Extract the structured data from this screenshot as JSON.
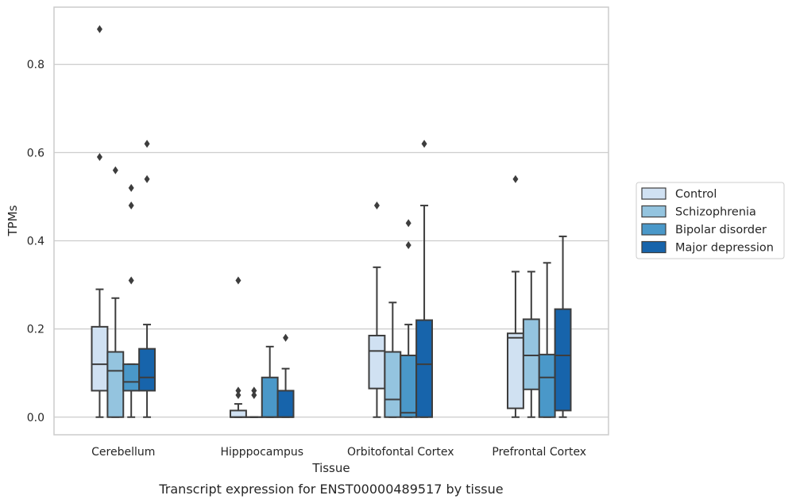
{
  "caption": "Transcript expression for ENST00000489517 by tissue",
  "chart_data": {
    "type": "box",
    "xlabel": "Tissue",
    "ylabel": "TPMs",
    "ylim": [
      -0.04,
      0.93
    ],
    "yticks": [
      0.0,
      0.2,
      0.4,
      0.6,
      0.8
    ],
    "ytick_labels": [
      "0.0",
      "0.2",
      "0.4",
      "0.6",
      "0.8"
    ],
    "grid": "horizontal",
    "legend_position": "right",
    "categories": [
      "Cerebellum",
      "Hipppocampus",
      "Orbitofontal Cortex",
      "Prefrontal Cortex"
    ],
    "series": [
      {
        "name": "Control",
        "color": "#d0e1f2",
        "boxes": [
          {
            "low": 0.0,
            "q1": 0.06,
            "median": 0.12,
            "q3": 0.205,
            "high": 0.29,
            "outliers": [
              0.88,
              0.59
            ]
          },
          {
            "low": 0.0,
            "q1": 0.0,
            "median": 0.0,
            "q3": 0.015,
            "high": 0.03,
            "outliers": [
              0.31,
              0.06,
              0.05
            ]
          },
          {
            "low": 0.0,
            "q1": 0.065,
            "median": 0.15,
            "q3": 0.185,
            "high": 0.34,
            "outliers": [
              0.48
            ]
          },
          {
            "low": 0.0,
            "q1": 0.02,
            "median": 0.18,
            "q3": 0.19,
            "high": 0.33,
            "outliers": [
              0.54
            ]
          }
        ]
      },
      {
        "name": "Schizophrenia",
        "color": "#94c4df",
        "boxes": [
          {
            "low": 0.0,
            "q1": 0.0,
            "median": 0.105,
            "q3": 0.148,
            "high": 0.27,
            "outliers": [
              0.56
            ]
          },
          {
            "low": 0.0,
            "q1": 0.0,
            "median": 0.0,
            "q3": 0.0,
            "high": 0.0,
            "outliers": [
              0.06,
              0.05
            ]
          },
          {
            "low": 0.0,
            "q1": 0.0,
            "median": 0.04,
            "q3": 0.148,
            "high": 0.26,
            "outliers": []
          },
          {
            "low": 0.0,
            "q1": 0.063,
            "median": 0.14,
            "q3": 0.222,
            "high": 0.33,
            "outliers": []
          }
        ]
      },
      {
        "name": "Bipolar disorder",
        "color": "#4a98c9",
        "boxes": [
          {
            "low": 0.0,
            "q1": 0.06,
            "median": 0.08,
            "q3": 0.12,
            "high": 0.12,
            "outliers": [
              0.52,
              0.48,
              0.31
            ]
          },
          {
            "low": 0.0,
            "q1": 0.0,
            "median": 0.0,
            "q3": 0.09,
            "high": 0.16,
            "outliers": []
          },
          {
            "low": 0.0,
            "q1": 0.0,
            "median": 0.01,
            "q3": 0.14,
            "high": 0.21,
            "outliers": [
              0.44,
              0.39
            ]
          },
          {
            "low": 0.0,
            "q1": 0.0,
            "median": 0.09,
            "q3": 0.142,
            "high": 0.35,
            "outliers": []
          }
        ]
      },
      {
        "name": "Major depression",
        "color": "#1764ab",
        "boxes": [
          {
            "low": 0.0,
            "q1": 0.06,
            "median": 0.09,
            "q3": 0.155,
            "high": 0.21,
            "outliers": [
              0.62,
              0.54
            ]
          },
          {
            "low": 0.0,
            "q1": 0.0,
            "median": 0.0,
            "q3": 0.06,
            "high": 0.11,
            "outliers": [
              0.18
            ]
          },
          {
            "low": 0.0,
            "q1": 0.0,
            "median": 0.12,
            "q3": 0.22,
            "high": 0.48,
            "outliers": [
              0.62
            ]
          },
          {
            "low": 0.0,
            "q1": 0.015,
            "median": 0.14,
            "q3": 0.245,
            "high": 0.41,
            "outliers": []
          }
        ]
      }
    ]
  }
}
